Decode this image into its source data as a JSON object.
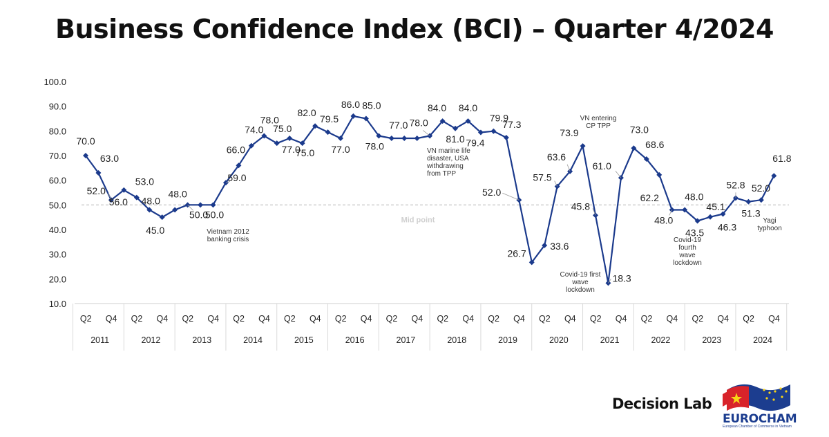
{
  "title": "Business Confidence Index (BCI) – Quarter 4/2024",
  "branding": {
    "company": "Decision Lab",
    "partner_name": "EUROCHAM",
    "partner_subtitle": "European Chamber of Commerce in Vietnam"
  },
  "chart_data": {
    "type": "line",
    "title": "Business Confidence Index (BCI) – Quarter 4/2024",
    "ylim": [
      10,
      100
    ],
    "yticks": [
      "100.0",
      "90.0",
      "80.0",
      "70.0",
      "60.0",
      "50.0",
      "40.0",
      "30.0",
      "20.0",
      "10.0"
    ],
    "x_quarters": [
      "Q2",
      "Q4"
    ],
    "x_years": [
      "2011",
      "2012",
      "2013",
      "2014",
      "2015",
      "2016",
      "2017",
      "2018",
      "2019",
      "2020",
      "2021",
      "2022",
      "2023",
      "2024"
    ],
    "line_color": "#1b3a8c",
    "midpoint": {
      "value": 50,
      "label": "Mid point"
    },
    "points": [
      {
        "period": "2011 Q1",
        "value": 70.0,
        "label": "70.0"
      },
      {
        "period": "2011 Q2",
        "value": 63.0,
        "label": "63.0"
      },
      {
        "period": "2011 Q3",
        "value": 52.0,
        "label": "52.0"
      },
      {
        "period": "2011 Q4",
        "value": 56.0,
        "label": "56.0"
      },
      {
        "period": "2012 Q1",
        "value": 53.0,
        "label": "53.0"
      },
      {
        "period": "2012 Q2",
        "value": 48.0,
        "label": "48.0"
      },
      {
        "period": "2012 Q3",
        "value": 45.0,
        "label": "45.0"
      },
      {
        "period": "2012 Q4",
        "value": 48.0,
        "label": "48.0"
      },
      {
        "period": "2013 Q1",
        "value": 50.0,
        "label": "50.0"
      },
      {
        "period": "2013 Q2",
        "value": 50.0,
        "label": ""
      },
      {
        "period": "2013 Q3",
        "value": 50.0,
        "label": "50.0"
      },
      {
        "period": "2013 Q4",
        "value": 59.0,
        "label": "59.0"
      },
      {
        "period": "2014 Q1",
        "value": 66.0,
        "label": "66.0"
      },
      {
        "period": "2014 Q2",
        "value": 74.0,
        "label": "74.0"
      },
      {
        "period": "2014 Q3",
        "value": 78.0,
        "label": "78.0"
      },
      {
        "period": "2014 Q4",
        "value": 75.0,
        "label": "75.0"
      },
      {
        "period": "2015 Q1",
        "value": 77.0,
        "label": "77.0"
      },
      {
        "period": "2015 Q2",
        "value": 75.0,
        "label": "75.0"
      },
      {
        "period": "2015 Q3",
        "value": 82.0,
        "label": "82.0"
      },
      {
        "period": "2015 Q4",
        "value": 79.5,
        "label": "79.5"
      },
      {
        "period": "2016 Q1",
        "value": 77.0,
        "label": "77.0"
      },
      {
        "period": "2016 Q2",
        "value": 86.0,
        "label": "86.0"
      },
      {
        "period": "2016 Q3",
        "value": 85.0,
        "label": "85.0"
      },
      {
        "period": "2016 Q4",
        "value": 78.0,
        "label": "78.0"
      },
      {
        "period": "2017 Q1",
        "value": 77.0,
        "label": "77.0"
      },
      {
        "period": "2017 Q2",
        "value": 77.0,
        "label": ""
      },
      {
        "period": "2017 Q3",
        "value": 77.0,
        "label": ""
      },
      {
        "period": "2017 Q4",
        "value": 78.0,
        "label": "78.0"
      },
      {
        "period": "2018 Q1",
        "value": 84.0,
        "label": "84.0"
      },
      {
        "period": "2018 Q2",
        "value": 81.0,
        "label": "81.0"
      },
      {
        "period": "2018 Q3",
        "value": 84.0,
        "label": "84.0"
      },
      {
        "period": "2018 Q4",
        "value": 79.4,
        "label": "79.4"
      },
      {
        "period": "2019 Q1",
        "value": 79.9,
        "label": "79.9"
      },
      {
        "period": "2019 Q2",
        "value": 77.3,
        "label": "77.3"
      },
      {
        "period": "2019 Q3",
        "value": 52.0,
        "label": "52.0"
      },
      {
        "period": "2019 Q4",
        "value": 26.7,
        "label": "26.7"
      },
      {
        "period": "2020 Q1",
        "value": 33.6,
        "label": "33.6"
      },
      {
        "period": "2020 Q2",
        "value": 57.5,
        "label": "57.5"
      },
      {
        "period": "2020 Q3",
        "value": 63.6,
        "label": "63.6"
      },
      {
        "period": "2020 Q4",
        "value": 73.9,
        "label": "73.9"
      },
      {
        "period": "2021 Q1",
        "value": 45.8,
        "label": "45.8"
      },
      {
        "period": "2021 Q2",
        "value": 18.3,
        "label": "18.3"
      },
      {
        "period": "2021 Q3",
        "value": 61.0,
        "label": "61.0"
      },
      {
        "period": "2021 Q4",
        "value": 73.0,
        "label": "73.0"
      },
      {
        "period": "2022 Q1",
        "value": 68.6,
        "label": "68.6"
      },
      {
        "period": "2022 Q2",
        "value": 62.2,
        "label": "62.2"
      },
      {
        "period": "2022 Q3",
        "value": 48.0,
        "label": "48.0"
      },
      {
        "period": "2022 Q4",
        "value": 48.0,
        "label": "48.0"
      },
      {
        "period": "2023 Q1",
        "value": 43.5,
        "label": "43.5"
      },
      {
        "period": "2023 Q2",
        "value": 45.1,
        "label": "45.1"
      },
      {
        "period": "2023 Q3",
        "value": 46.3,
        "label": "46.3"
      },
      {
        "period": "2023 Q4",
        "value": 52.8,
        "label": "52.8"
      },
      {
        "period": "2024 Q1",
        "value": 51.3,
        "label": "51.3"
      },
      {
        "period": "2024 Q2",
        "value": 52.0,
        "label": "52.0"
      },
      {
        "period": "2024 Q3",
        "value": 61.8,
        "label": "61.8"
      }
    ],
    "annotations": [
      {
        "at": "2013 Q2",
        "lines": [
          "Vietnam 2012",
          "banking crisis"
        ]
      },
      {
        "at": "2018 Q1",
        "lines": [
          "VN marine life",
          "disaster, USA",
          "withdrawing",
          "from TPP"
        ]
      },
      {
        "at": "2020 Q4",
        "lines": [
          "VN entering",
          "CP TPP"
        ]
      },
      {
        "at": "2021 Q2",
        "lines": [
          "Covid-19 first",
          "wave",
          "lockdown"
        ]
      },
      {
        "at": "2022 Q4",
        "lines": [
          "Covid-19",
          "fourth",
          "wave",
          "lockdown"
        ]
      },
      {
        "at": "2024 Q3",
        "lines": [
          "Yagi",
          "typhoon"
        ]
      }
    ]
  }
}
